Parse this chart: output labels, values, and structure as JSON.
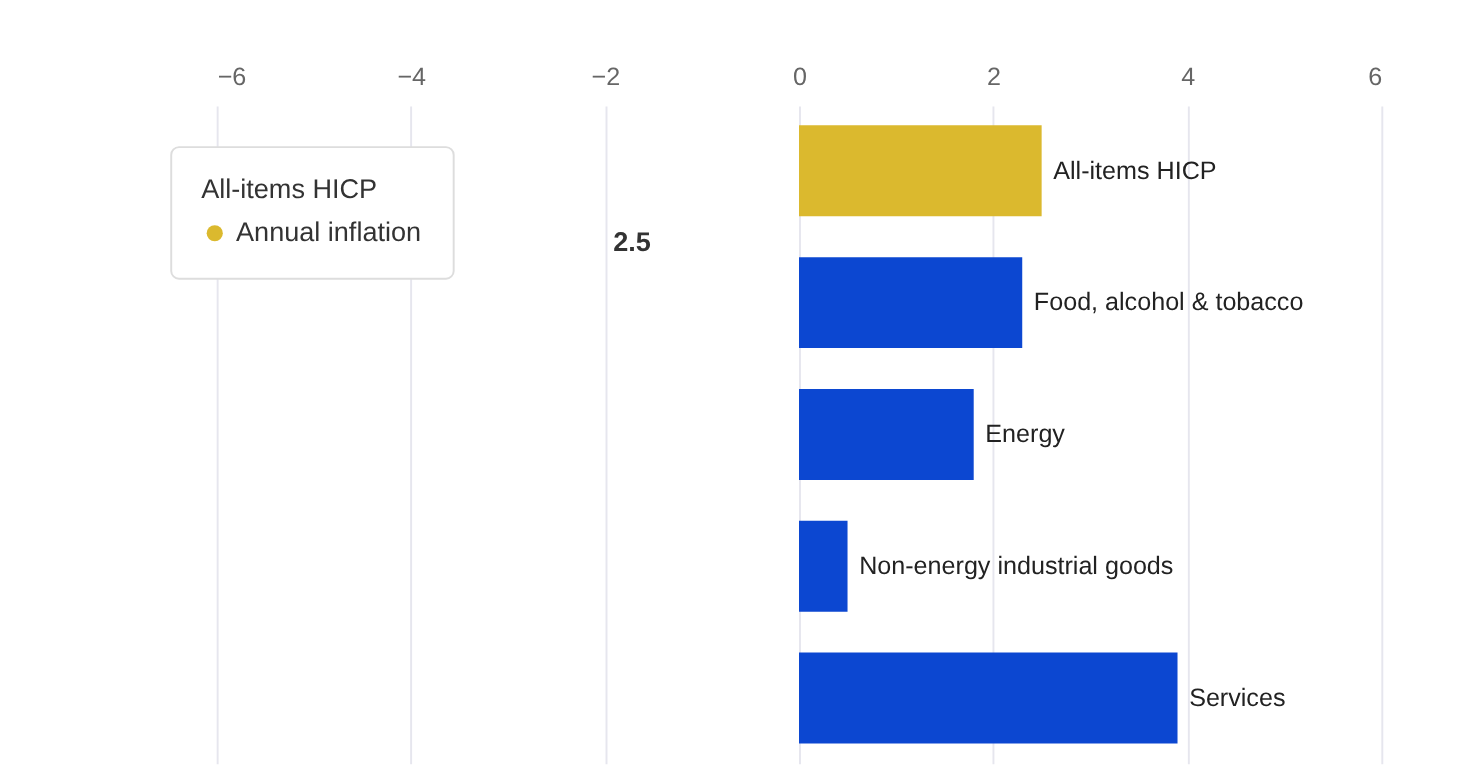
{
  "chart_data": {
    "type": "bar",
    "orientation": "horizontal",
    "categories": [
      "All-items HICP",
      "Food, alcohol & tobacco",
      "Energy",
      "Non-energy industrial goods",
      "Services"
    ],
    "series": [
      {
        "name": "Annual inflation",
        "values": [
          2.5,
          2.3,
          1.8,
          0.5,
          3.9
        ]
      }
    ],
    "legend_title": "All-items HICP",
    "annotations": [
      "2.5"
    ],
    "colors": [
      "#dbb92e",
      "#0c47d1",
      "#0c47d1",
      "#0c47d1",
      "#0c47d1"
    ],
    "xlim": [
      -6,
      6
    ],
    "xticks": [
      -6,
      -4,
      -2,
      0,
      2,
      4,
      6
    ],
    "grid": "x",
    "legend": "top left"
  }
}
